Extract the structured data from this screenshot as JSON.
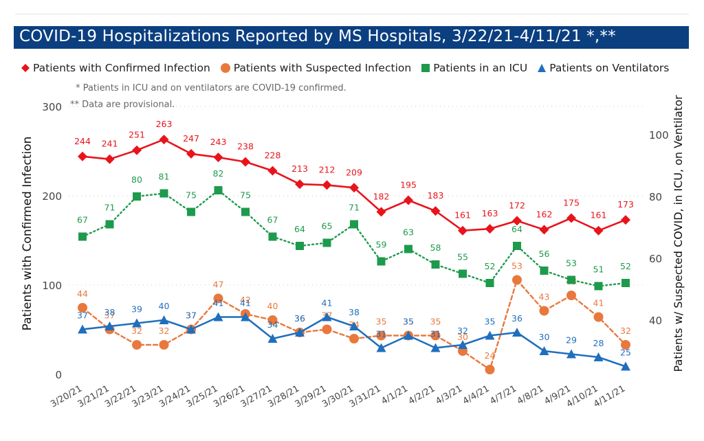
{
  "title": "COVID-19 Hospitalizations Reported by MS Hospitals, 3/22/21-4/11/21 *,**",
  "notes": [
    "* Patients in ICU and on ventilators are COVID-19 confirmed.",
    "** Data are provisional."
  ],
  "colors": {
    "title_bg": "#0b3f80",
    "confirmed": "#e8141b",
    "suspected": "#e9783d",
    "icu": "#1d9a4c",
    "ventilator": "#1f6fbd"
  },
  "chart_data": {
    "type": "line",
    "categories": [
      "3/20/21",
      "3/21/21",
      "3/22/21",
      "3/23/21",
      "3/24/21",
      "3/25/21",
      "3/26/21",
      "3/27/21",
      "3/28/21",
      "3/29/21",
      "3/30/21",
      "3/31/21",
      "4/1/21",
      "4/2/21",
      "4/3/21",
      "4/4/21",
      "4/7/21",
      "4/8/21",
      "4/9/21",
      "4/10/21",
      "4/11/21"
    ],
    "y_left": {
      "label": "Patients with Confirmed Infection",
      "range": [
        0,
        300
      ],
      "ticks": [
        0,
        100,
        200,
        300
      ]
    },
    "y_right": {
      "label": "Patients w/ Suspected COVID, in ICU, on Ventilator",
      "range": [
        24,
        108
      ],
      "ticks": [
        40,
        60,
        80,
        100
      ]
    },
    "legend_position": "top-left",
    "gridlines": true,
    "series": [
      {
        "name": "Patients with Confirmed Infection",
        "axis": "left",
        "marker": "diamond",
        "line": "solid",
        "color": "#e8141b",
        "values": [
          244,
          241,
          251,
          263,
          247,
          243,
          238,
          228,
          213,
          212,
          209,
          182,
          195,
          183,
          161,
          163,
          172,
          162,
          175,
          161,
          173
        ]
      },
      {
        "name": "Patients with Suspected Infection",
        "axis": "right",
        "marker": "circle",
        "line": "dashed",
        "color": "#e9783d",
        "values": [
          44,
          37,
          32,
          32,
          37,
          47,
          42,
          40,
          36,
          37,
          34,
          35,
          35,
          35,
          30,
          24,
          53,
          43,
          48,
          41,
          32
        ]
      },
      {
        "name": "Patients in an ICU",
        "axis": "right",
        "marker": "square",
        "line": "dotted",
        "color": "#1d9a4c",
        "values": [
          67,
          71,
          80,
          81,
          75,
          82,
          75,
          67,
          64,
          65,
          71,
          59,
          63,
          58,
          55,
          52,
          64,
          56,
          53,
          51,
          52
        ]
      },
      {
        "name": "Patients on Ventilators",
        "axis": "right",
        "marker": "triangle",
        "line": "solid",
        "color": "#1f6fbd",
        "values": [
          37,
          38,
          39,
          40,
          37,
          41,
          41,
          34,
          36,
          41,
          38,
          31,
          35,
          31,
          32,
          35,
          36,
          30,
          29,
          28,
          25
        ]
      }
    ]
  }
}
